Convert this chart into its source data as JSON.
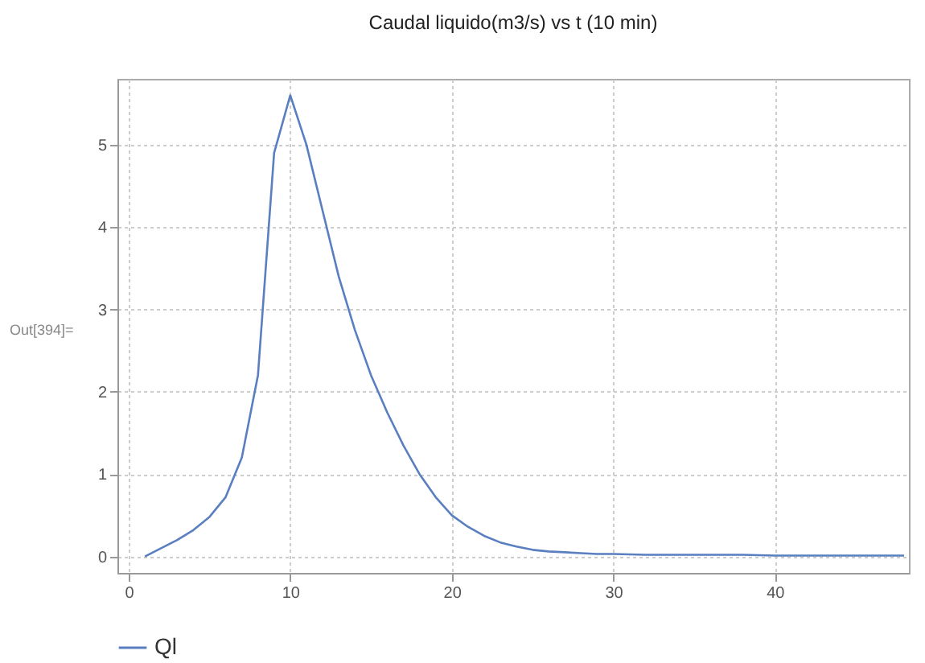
{
  "chart_data": {
    "type": "line",
    "title": "Caudal liquido(m3/s) vs t (10 min)",
    "x": [
      1,
      2,
      3,
      4,
      5,
      6,
      7,
      8,
      9,
      10,
      11,
      12,
      13,
      14,
      15,
      16,
      17,
      18,
      19,
      20,
      21,
      22,
      23,
      24,
      25,
      26,
      27,
      28,
      29,
      30,
      32,
      34,
      36,
      38,
      40,
      42,
      44,
      46,
      48
    ],
    "series": [
      {
        "name": "Ql",
        "color": "#5a7fc0",
        "values": [
          0.0,
          0.1,
          0.2,
          0.32,
          0.48,
          0.72,
          1.2,
          2.2,
          4.9,
          5.6,
          5.0,
          4.2,
          3.4,
          2.75,
          2.2,
          1.75,
          1.35,
          1.0,
          0.72,
          0.5,
          0.36,
          0.25,
          0.17,
          0.12,
          0.08,
          0.06,
          0.05,
          0.04,
          0.03,
          0.03,
          0.02,
          0.02,
          0.02,
          0.02,
          0.01,
          0.01,
          0.01,
          0.01,
          0.01
        ]
      }
    ],
    "xlim": [
      -0.7,
      48.3
    ],
    "ylim": [
      -0.2,
      5.8
    ],
    "xticks": [
      0,
      10,
      20,
      30,
      40
    ],
    "yticks": [
      0,
      1,
      2,
      3,
      4,
      5
    ],
    "grid": true,
    "legend": "bottom",
    "marker": "none",
    "line_style": "solid",
    "annotations": [
      "Out[394]="
    ]
  }
}
